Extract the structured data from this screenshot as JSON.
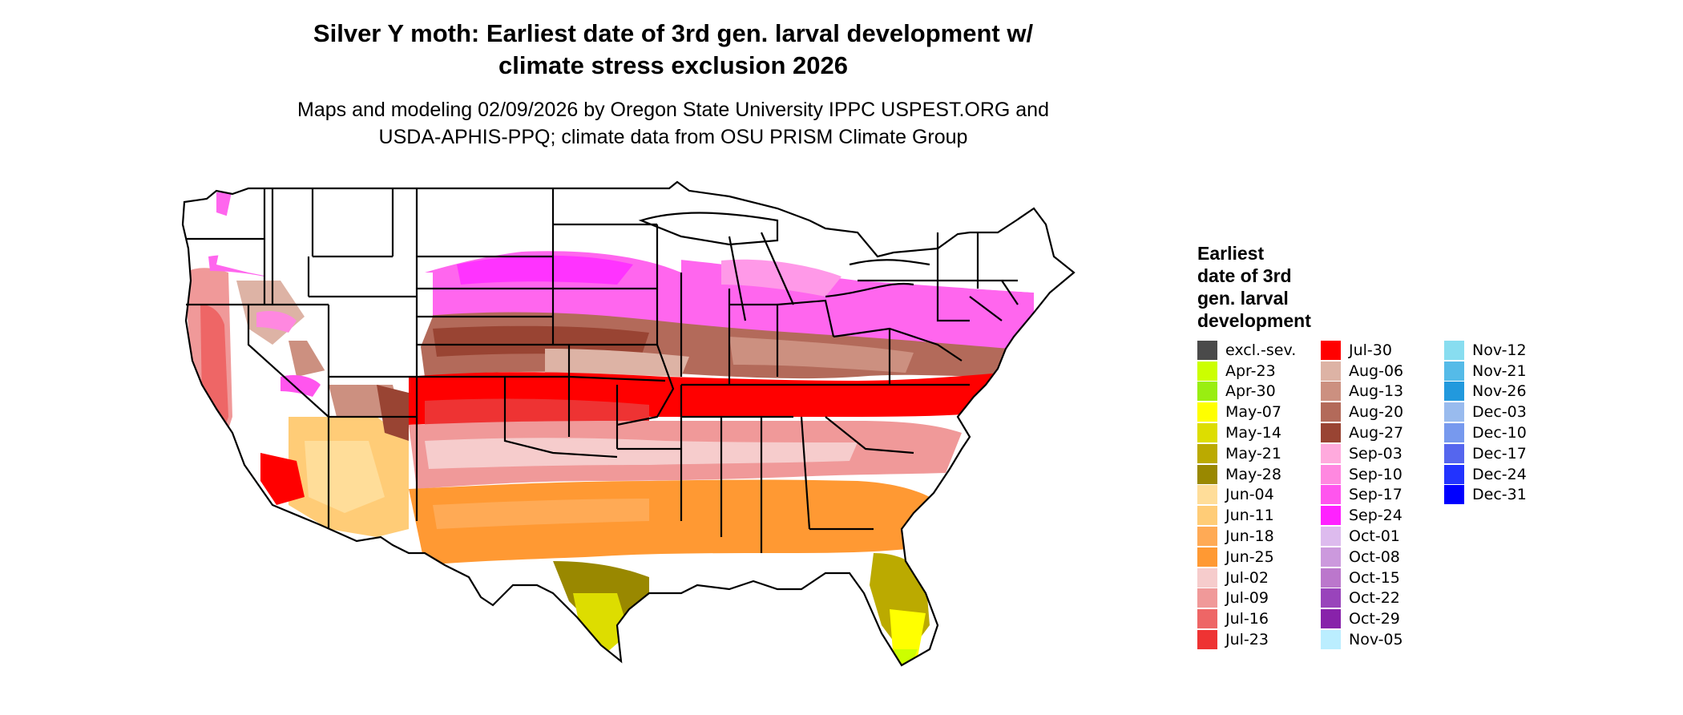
{
  "title": {
    "line1": "Silver Y moth: Earliest date of 3rd gen. larval development w/",
    "line2": "climate stress exclusion 2026"
  },
  "subtitle": {
    "line1": "Maps and modeling 02/09/2026 by Oregon State University IPPC USPEST.ORG and",
    "line2": "USDA-APHIS-PPQ; climate data from OSU PRISM Climate Group"
  },
  "legend": {
    "title_lines": [
      "Earliest",
      "date of 3rd",
      "gen. larval",
      "development"
    ],
    "columns": [
      [
        {
          "label": "excl.-sev.",
          "color": "#4a4a4a"
        },
        {
          "label": "Apr-23",
          "color": "#ccff00"
        },
        {
          "label": "Apr-30",
          "color": "#99ee11"
        },
        {
          "label": "May-07",
          "color": "#ffff00"
        },
        {
          "label": "May-14",
          "color": "#dddd00"
        },
        {
          "label": "May-21",
          "color": "#bbaa00"
        },
        {
          "label": "May-28",
          "color": "#998800"
        },
        {
          "label": "Jun-04",
          "color": "#ffdd99"
        },
        {
          "label": "Jun-11",
          "color": "#ffcc77"
        },
        {
          "label": "Jun-18",
          "color": "#ffaa55"
        },
        {
          "label": "Jun-25",
          "color": "#ff9933"
        },
        {
          "label": "Jul-02",
          "color": "#f6cccc"
        },
        {
          "label": "Jul-09",
          "color": "#f09999"
        },
        {
          "label": "Jul-16",
          "color": "#ee6666"
        },
        {
          "label": "Jul-23",
          "color": "#ee3333"
        }
      ],
      [
        {
          "label": "Jul-30",
          "color": "#ff0000"
        },
        {
          "label": "Aug-06",
          "color": "#ddb3a5"
        },
        {
          "label": "Aug-13",
          "color": "#cc9080"
        },
        {
          "label": "Aug-20",
          "color": "#b36a5a"
        },
        {
          "label": "Aug-27",
          "color": "#994433"
        },
        {
          "label": "Sep-03",
          "color": "#ffaadd"
        },
        {
          "label": "Sep-10",
          "color": "#ff88e0"
        },
        {
          "label": "Sep-17",
          "color": "#ff55ee"
        },
        {
          "label": "Sep-24",
          "color": "#ff22ff"
        },
        {
          "label": "Oct-01",
          "color": "#ddbbee"
        },
        {
          "label": "Oct-08",
          "color": "#cc99dd"
        },
        {
          "label": "Oct-15",
          "color": "#bb77cc"
        },
        {
          "label": "Oct-22",
          "color": "#9944bb"
        },
        {
          "label": "Oct-29",
          "color": "#8822aa"
        },
        {
          "label": "Nov-05",
          "color": "#bbeeff"
        }
      ],
      [
        {
          "label": "Nov-12",
          "color": "#88ddf0"
        },
        {
          "label": "Nov-21",
          "color": "#55bbe8"
        },
        {
          "label": "Nov-26",
          "color": "#2299dd"
        },
        {
          "label": "Dec-03",
          "color": "#99bbee"
        },
        {
          "label": "Dec-10",
          "color": "#7799ee"
        },
        {
          "label": "Dec-17",
          "color": "#5566ee"
        },
        {
          "label": "Dec-24",
          "color": "#2233ff"
        },
        {
          "label": "Dec-31",
          "color": "#0000ff"
        }
      ]
    ]
  }
}
